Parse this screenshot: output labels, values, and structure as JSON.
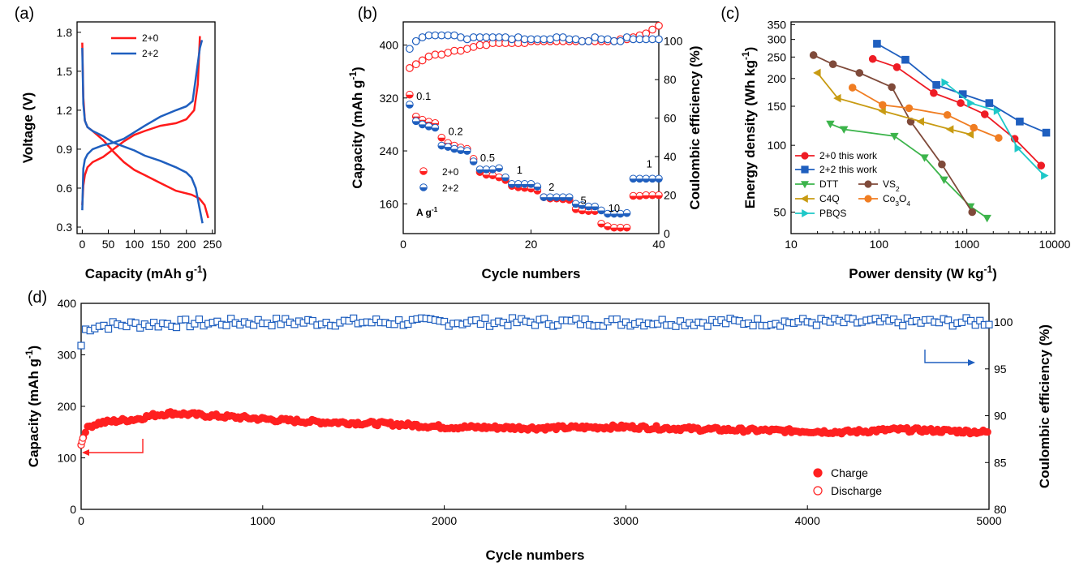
{
  "chart_data": [
    {
      "panel": "(a)",
      "type": "line",
      "xlabel": "Capacity (mAh g-1)",
      "ylabel": "Voltage (V)",
      "xlim": [
        -10,
        255
      ],
      "ylim": [
        0.25,
        1.88
      ],
      "xticks": [
        0,
        50,
        100,
        150,
        200,
        250
      ],
      "yticks": [
        0.3,
        0.6,
        0.9,
        1.2,
        1.5,
        1.8
      ],
      "ytick_labels": [
        "0.3",
        "0.6",
        "0.9",
        "1.2",
        "1.5",
        "1.8"
      ],
      "legend_position": "top-left",
      "series": [
        {
          "name": "2+0",
          "color": "#ff1a1a",
          "charge": [
            [
              0,
              0.47
            ],
            [
              2,
              0.62
            ],
            [
              5,
              0.7
            ],
            [
              10,
              0.76
            ],
            [
              20,
              0.8
            ],
            [
              40,
              0.84
            ],
            [
              60,
              0.9
            ],
            [
              80,
              0.96
            ],
            [
              100,
              1.01
            ],
            [
              120,
              1.04
            ],
            [
              150,
              1.08
            ],
            [
              180,
              1.1
            ],
            [
              200,
              1.13
            ],
            [
              215,
              1.2
            ],
            [
              222,
              1.4
            ],
            [
              226,
              1.77
            ]
          ],
          "discharge": [
            [
              0,
              1.72
            ],
            [
              2,
              1.3
            ],
            [
              5,
              1.12
            ],
            [
              10,
              1.07
            ],
            [
              20,
              1.04
            ],
            [
              40,
              0.97
            ],
            [
              60,
              0.88
            ],
            [
              80,
              0.8
            ],
            [
              100,
              0.74
            ],
            [
              120,
              0.7
            ],
            [
              150,
              0.64
            ],
            [
              180,
              0.58
            ],
            [
              210,
              0.55
            ],
            [
              225,
              0.52
            ],
            [
              235,
              0.47
            ],
            [
              242,
              0.37
            ]
          ]
        },
        {
          "name": "2+2",
          "color": "#1f5fbf",
          "charge": [
            [
              0,
              0.43
            ],
            [
              2,
              0.75
            ],
            [
              5,
              0.82
            ],
            [
              10,
              0.86
            ],
            [
              20,
              0.9
            ],
            [
              40,
              0.93
            ],
            [
              60,
              0.95
            ],
            [
              80,
              0.98
            ],
            [
              100,
              1.03
            ],
            [
              120,
              1.08
            ],
            [
              150,
              1.15
            ],
            [
              180,
              1.2
            ],
            [
              200,
              1.23
            ],
            [
              212,
              1.27
            ],
            [
              220,
              1.5
            ],
            [
              226,
              1.68
            ],
            [
              230,
              1.74
            ]
          ],
          "discharge": [
            [
              0,
              1.68
            ],
            [
              2,
              1.25
            ],
            [
              5,
              1.12
            ],
            [
              10,
              1.07
            ],
            [
              20,
              1.04
            ],
            [
              40,
              1.0
            ],
            [
              60,
              0.95
            ],
            [
              80,
              0.92
            ],
            [
              100,
              0.89
            ],
            [
              120,
              0.85
            ],
            [
              150,
              0.81
            ],
            [
              180,
              0.76
            ],
            [
              200,
              0.72
            ],
            [
              210,
              0.68
            ],
            [
              218,
              0.6
            ],
            [
              225,
              0.45
            ],
            [
              231,
              0.33
            ]
          ]
        }
      ]
    },
    {
      "panel": "(b)",
      "type": "scatter",
      "xlabel": "Cycle numbers",
      "ylabel": "Capacity (mAh g-1)",
      "ylabel2": "Coulombic efficiency (%)",
      "xlim": [
        0,
        40
      ],
      "ylim": [
        115,
        435
      ],
      "ylim2": [
        0,
        110
      ],
      "xticks": [
        0,
        20,
        40
      ],
      "yticks": [
        160,
        240,
        320,
        400
      ],
      "yticks2": [
        0,
        20,
        40,
        60,
        80,
        100
      ],
      "legend_position": "bottom-left",
      "legend_note": "A g-1",
      "rate_labels": [
        {
          "text": "0.1",
          "x": 3.2,
          "y": 317
        },
        {
          "text": "0.2",
          "x": 8.2,
          "y": 264
        },
        {
          "text": "0.5",
          "x": 13.2,
          "y": 224
        },
        {
          "text": "1",
          "x": 18.2,
          "y": 206
        },
        {
          "text": "2",
          "x": 23.2,
          "y": 180
        },
        {
          "text": "5",
          "x": 28.2,
          "y": 160
        },
        {
          "text": "10",
          "x": 33.0,
          "y": 148
        },
        {
          "text": "1",
          "x": 38.5,
          "y": 215
        }
      ],
      "series": [
        {
          "name": "2+0",
          "color": "#ff2020",
          "x": [
            1,
            2,
            3,
            4,
            5,
            6,
            7,
            8,
            9,
            10,
            11,
            12,
            13,
            14,
            15,
            16,
            17,
            18,
            19,
            20,
            21,
            22,
            23,
            24,
            25,
            26,
            27,
            28,
            29,
            30,
            31,
            32,
            33,
            34,
            35,
            36,
            37,
            38,
            39,
            40
          ],
          "capacity": [
            325,
            292,
            287,
            284,
            282,
            260,
            252,
            248,
            245,
            243,
            228,
            208,
            204,
            203,
            200,
            196,
            187,
            185,
            184,
            183,
            180,
            170,
            168,
            168,
            167,
            166,
            152,
            150,
            149,
            149,
            130,
            126,
            124,
            124,
            124,
            172,
            172,
            173,
            173,
            173
          ],
          "ce": [
            86,
            88,
            90,
            92,
            93,
            93,
            94,
            95,
            95,
            96,
            97,
            98,
            98,
            99,
            99,
            99,
            99,
            99,
            99,
            100,
            100,
            100,
            100,
            100,
            100,
            100,
            100,
            100,
            100,
            100,
            100,
            100,
            100,
            101,
            101,
            102,
            103,
            104,
            106,
            108
          ]
        },
        {
          "name": "2+2",
          "color": "#1f5fbf",
          "x": [
            1,
            2,
            3,
            4,
            5,
            6,
            7,
            8,
            9,
            10,
            11,
            12,
            13,
            14,
            15,
            16,
            17,
            18,
            19,
            20,
            21,
            22,
            23,
            24,
            25,
            26,
            27,
            28,
            29,
            30,
            31,
            32,
            33,
            34,
            35,
            36,
            37,
            38,
            39,
            40
          ],
          "capacity": [
            310,
            285,
            280,
            277,
            275,
            248,
            246,
            243,
            241,
            240,
            224,
            212,
            212,
            212,
            214,
            200,
            190,
            190,
            190,
            190,
            186,
            170,
            170,
            170,
            170,
            170,
            160,
            158,
            156,
            156,
            150,
            145,
            145,
            145,
            146,
            198,
            198,
            198,
            198,
            198
          ],
          "ce": [
            96,
            100,
            102,
            103,
            103,
            103,
            103,
            103,
            102,
            101,
            102,
            102,
            102,
            102,
            102,
            102,
            101,
            102,
            101,
            101,
            101,
            101,
            101,
            102,
            102,
            101,
            101,
            100,
            100,
            102,
            101,
            101,
            100,
            100,
            102,
            101,
            101,
            101,
            101,
            101
          ]
        }
      ]
    },
    {
      "panel": "(c)",
      "type": "line",
      "xscale": "log",
      "yscale": "log",
      "xlabel": "Power density (W kg-1)",
      "ylabel": "Energy density (Wh kg-1)",
      "xlim": [
        10,
        10000
      ],
      "ylim": [
        40,
        360
      ],
      "xticks": [
        10,
        100,
        1000,
        10000
      ],
      "yticks": [
        50,
        100,
        150,
        200,
        250,
        300,
        350
      ],
      "legend_position": "bottom-left",
      "series": [
        {
          "name": "2+0 this work",
          "color": "#ee1c25",
          "marker": "circle",
          "points": [
            [
              85,
              245
            ],
            [
              160,
              225
            ],
            [
              420,
              172
            ],
            [
              850,
              155
            ],
            [
              1600,
              138
            ],
            [
              3500,
              107
            ],
            [
              7000,
              81
            ]
          ]
        },
        {
          "name": "2+2 this work",
          "color": "#1f5fbf",
          "marker": "square",
          "points": [
            [
              95,
              287
            ],
            [
              200,
              243
            ],
            [
              450,
              187
            ],
            [
              900,
              170
            ],
            [
              1800,
              155
            ],
            [
              4000,
              128
            ],
            [
              8000,
              114
            ]
          ]
        },
        {
          "name": "DTT",
          "color": "#3cb44b",
          "marker": "triangle-down",
          "points": [
            [
              28,
              125
            ],
            [
              40,
              118
            ],
            [
              150,
              110
            ],
            [
              330,
              88
            ],
            [
              550,
              70
            ],
            [
              1100,
              53
            ],
            [
              1700,
              47
            ]
          ]
        },
        {
          "name": "VS2",
          "color": "#7f4a3a",
          "marker": "circle",
          "points": [
            [
              18,
              255
            ],
            [
              30,
              232
            ],
            [
              60,
              212
            ],
            [
              140,
              183
            ],
            [
              230,
              128
            ],
            [
              520,
              82
            ],
            [
              1150,
              50
            ]
          ]
        },
        {
          "name": "C4Q",
          "color": "#c89b13",
          "marker": "triangle-left",
          "points": [
            [
              20,
              212
            ],
            [
              34,
              163
            ],
            [
              110,
              143
            ],
            [
              300,
              128
            ],
            [
              650,
              118
            ],
            [
              1100,
              112
            ]
          ]
        },
        {
          "name": "Co3O4",
          "color": "#f07d22",
          "marker": "circle",
          "points": [
            [
              50,
              182
            ],
            [
              110,
              152
            ],
            [
              220,
              147
            ],
            [
              600,
              137
            ],
            [
              1200,
              120
            ],
            [
              2300,
              108
            ]
          ]
        },
        {
          "name": "PBQS",
          "color": "#1ec8c8",
          "marker": "triangle-right",
          "points": [
            [
              560,
              192
            ],
            [
              1100,
              155
            ],
            [
              2200,
              143
            ],
            [
              3800,
              97
            ],
            [
              7600,
              73
            ]
          ]
        }
      ]
    },
    {
      "panel": "(d)",
      "type": "scatter",
      "xlabel": "Cycle numbers",
      "ylabel": "Capacity (mAh g-1)",
      "ylabel2": "Coulombic efficiency (%)",
      "xlim": [
        0,
        5000
      ],
      "ylim": [
        0,
        400
      ],
      "ylim2": [
        80,
        102
      ],
      "xticks": [
        0,
        1000,
        2000,
        3000,
        4000,
        5000
      ],
      "yticks": [
        0,
        100,
        200,
        300,
        400
      ],
      "yticks2": [
        80,
        85,
        90,
        95,
        100
      ],
      "legend_position": "bottom-right",
      "series": [
        {
          "name": "Charge",
          "color": "#ff2020",
          "x": [
            0,
            20,
            50,
            100,
            200,
            300,
            400,
            500,
            700,
            900,
            1100,
            1300,
            1500,
            1700,
            2000,
            2500,
            3000,
            3300,
            3500,
            3800,
            4000,
            4200,
            4500,
            4800,
            5000
          ],
          "capacity": [
            125,
            152,
            162,
            168,
            172,
            175,
            183,
            187,
            182,
            178,
            173,
            170,
            168,
            166,
            160,
            158,
            160,
            157,
            155,
            153,
            152,
            150,
            155,
            152,
            150
          ]
        },
        {
          "name": "Discharge",
          "color": "#ff2020",
          "x": [
            0,
            20,
            50,
            100,
            200,
            300,
            400,
            500,
            700,
            900,
            1100,
            1300,
            1500,
            1700,
            2000,
            2500,
            3000,
            3300,
            3500,
            3800,
            4000,
            4200,
            4500,
            4800,
            5000
          ],
          "capacity": [
            125,
            152,
            162,
            168,
            172,
            175,
            183,
            187,
            182,
            178,
            173,
            170,
            168,
            166,
            160,
            158,
            160,
            157,
            155,
            153,
            152,
            150,
            155,
            152,
            150
          ]
        },
        {
          "name": "Coulombic efficiency",
          "color": "#1f5fbf",
          "x": [
            0,
            10,
            30,
            60,
            100,
            200,
            400,
            700,
            1000,
            1500,
            2000,
            2500,
            3000,
            3500,
            4000,
            4500,
            5000
          ],
          "ce": [
            97.5,
            98.8,
            99.3,
            99.5,
            99.6,
            99.7,
            99.8,
            99.9,
            100,
            100,
            100,
            100,
            100,
            100,
            100,
            100,
            100
          ]
        }
      ]
    }
  ]
}
